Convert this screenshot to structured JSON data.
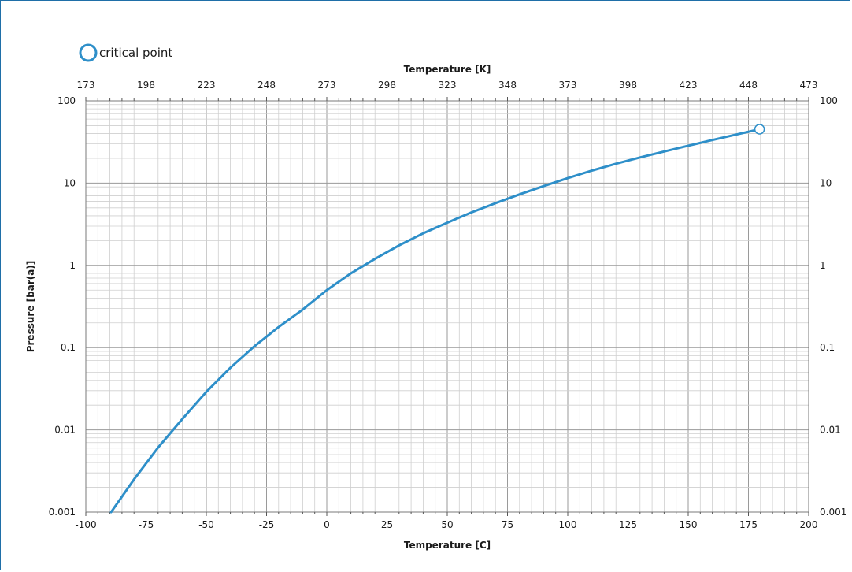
{
  "chart_data": {
    "type": "line",
    "title": "",
    "legend": {
      "entries": [
        {
          "label": "critical point",
          "marker": "open-circle"
        }
      ],
      "placement": "top-left"
    },
    "xlabel": "Temperature [C]",
    "x2label": "Temperature [K]",
    "ylabel": "Pressure [bar(a)]",
    "xlim": [
      -100,
      200
    ],
    "x2lim": [
      173,
      473
    ],
    "ylim": [
      0.001,
      100
    ],
    "yscale": "log",
    "grid": true,
    "x_ticks": [
      "-100",
      "-75",
      "-50",
      "-25",
      "0",
      "25",
      "50",
      "75",
      "100",
      "125",
      "150",
      "175",
      "200"
    ],
    "x2_ticks": [
      "173",
      "198",
      "223",
      "248",
      "273",
      "298",
      "323",
      "348",
      "373",
      "398",
      "423",
      "448",
      "473"
    ],
    "y_ticks": [
      "0.001",
      "0.01",
      "0.1",
      "1",
      "10",
      "100"
    ],
    "y_right_ticks": [
      "0.001",
      "0.01",
      "0.1",
      "1",
      "10",
      "100"
    ],
    "series": [
      {
        "name": "",
        "color": "#2e8fc9",
        "x": [
          -89.5,
          -80,
          -70,
          -60,
          -50,
          -40,
          -30,
          -20,
          -10,
          0,
          10,
          20,
          30,
          40,
          50,
          60,
          70,
          80,
          90,
          100,
          110,
          120,
          130,
          140,
          150,
          160,
          170,
          179.6
        ],
        "y": [
          0.001,
          0.0025,
          0.0061,
          0.0135,
          0.029,
          0.057,
          0.104,
          0.178,
          0.29,
          0.5,
          0.8,
          1.2,
          1.75,
          2.45,
          3.3,
          4.4,
          5.7,
          7.3,
          9.2,
          11.5,
          14.2,
          17.2,
          20.5,
          24.2,
          28.5,
          33.4,
          39.0,
          45.2
        ]
      }
    ],
    "critical_point": {
      "x": 179.6,
      "y": 45.2
    }
  }
}
